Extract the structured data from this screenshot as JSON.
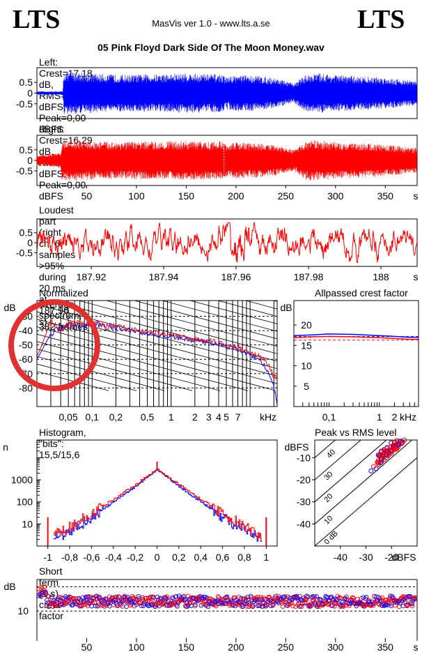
{
  "header": {
    "logo_left": "LTS",
    "logo_right": "LTS",
    "app_title": "MasVis ver 1.0 - www.lts.a.se",
    "file_name": "05 Pink Floyd Dark Side Of The Moon Money.wav"
  },
  "colors": {
    "left": "#0000ff",
    "right": "#ff0000",
    "annotation": "#e03030"
  },
  "chart_data": [
    {
      "id": "left-waveform",
      "type": "area",
      "title": "Left: Crest=17,18 dB, RMS=-17,18 dBFS, Peak=0,00 dBFS",
      "y_ticks": [
        "0.5",
        "0",
        "-0.5"
      ],
      "ylim": [
        -1,
        1
      ],
      "xlim": [
        0,
        382
      ],
      "envelope_x": [
        0,
        26,
        27,
        40,
        60,
        90,
        120,
        150,
        170,
        185,
        190,
        200,
        220,
        240,
        258,
        268,
        275,
        285,
        300,
        320,
        340,
        355,
        365,
        375,
        382
      ],
      "envelope_amp": [
        0.08,
        0.08,
        1.0,
        0.98,
        0.9,
        0.85,
        0.88,
        0.92,
        0.9,
        0.88,
        0.75,
        0.85,
        0.82,
        0.7,
        0.45,
        0.8,
        0.9,
        0.92,
        0.85,
        0.8,
        0.75,
        0.7,
        0.65,
        0.6,
        0.55
      ],
      "color": "#0000ff"
    },
    {
      "id": "right-waveform",
      "type": "area",
      "title": "Right: Crest=16,29 dB, RMS=-16,29 dBFS, Peak=0,00 dBFS",
      "y_ticks": [
        "0.5",
        "0",
        "-0.5"
      ],
      "x_ticks": [
        "50",
        "100",
        "150",
        "200",
        "250",
        "300",
        "350",
        "s"
      ],
      "x_tick_values": [
        50,
        100,
        150,
        200,
        250,
        300,
        350
      ],
      "ylim": [
        -1,
        1
      ],
      "xlim": [
        0,
        382
      ],
      "marker_x": 187.96,
      "envelope_x": [
        0,
        24,
        25,
        40,
        60,
        90,
        120,
        150,
        170,
        185,
        190,
        200,
        220,
        240,
        258,
        268,
        275,
        285,
        300,
        320,
        340,
        355,
        365,
        375,
        382
      ],
      "envelope_amp": [
        0.25,
        0.35,
        0.95,
        0.95,
        0.9,
        0.88,
        0.9,
        0.92,
        0.9,
        0.9,
        0.8,
        0.86,
        0.82,
        0.72,
        0.5,
        0.85,
        0.95,
        0.95,
        0.88,
        0.82,
        0.78,
        0.72,
        0.68,
        0.62,
        0.6
      ],
      "color": "#ff0000"
    },
    {
      "id": "loudest-part",
      "type": "line",
      "title": "Loudest part (right ch, 6 samples >95% during 20 ms at 187,96 s)",
      "y_ticks": [
        "0.5",
        "0",
        "-0.5"
      ],
      "x_ticks": [
        "187.92",
        "187.94",
        "187.96",
        "187.98",
        "188",
        "s"
      ],
      "x_tick_values": [
        187.92,
        187.94,
        187.96,
        187.98,
        188.0
      ],
      "xlim": [
        187.905,
        188.01
      ],
      "ylim": [
        -1,
        1
      ],
      "color": "#ff0000"
    },
    {
      "id": "spectrum",
      "type": "line",
      "title": "Normalized average spectrum, 382 frames",
      "ylabel": "dB",
      "y_ticks": [
        "-30",
        "-40",
        "-50",
        "-60",
        "-70",
        "-80"
      ],
      "y_tick_values": [
        -30,
        -40,
        -50,
        -60,
        -70,
        -80
      ],
      "x_ticks": [
        "0,05",
        "0,1",
        "0,2",
        "0,5",
        "1",
        "2",
        "3",
        "4",
        "5",
        "7",
        "kHz"
      ],
      "x_tick_values": [
        0.05,
        0.1,
        0.2,
        0.5,
        1,
        2,
        3,
        4,
        5,
        7
      ],
      "xlim_khz": [
        0.02,
        22
      ],
      "ylim": [
        -93,
        -19
      ],
      "series": [
        {
          "color": "#0000ff",
          "x_khz": [
            0.02,
            0.025,
            0.03,
            0.04,
            0.05,
            0.07,
            0.1,
            0.15,
            0.2,
            0.3,
            0.5,
            0.7,
            1,
            1.5,
            2,
            3,
            5,
            7,
            10,
            13,
            16,
            20,
            22
          ],
          "db": [
            -60,
            -50,
            -42,
            -38,
            -37,
            -36,
            -36,
            -37,
            -38,
            -40,
            -42,
            -43,
            -44,
            -46,
            -47,
            -48,
            -51,
            -53,
            -57,
            -60,
            -66,
            -80,
            -91
          ]
        },
        {
          "color": "#ff0000",
          "x_khz": [
            0.02,
            0.025,
            0.03,
            0.04,
            0.05,
            0.07,
            0.1,
            0.15,
            0.2,
            0.3,
            0.5,
            0.7,
            1,
            1.5,
            2,
            3,
            5,
            7,
            10,
            13,
            16,
            20,
            22
          ],
          "db": [
            -58,
            -45,
            -32,
            -39,
            -36,
            -35,
            -35,
            -37,
            -37,
            -39,
            -41,
            -42,
            -43,
            -45,
            -46,
            -47,
            -50,
            -52,
            -55,
            -58,
            -62,
            -72,
            -75
          ]
        }
      ]
    },
    {
      "id": "allpassed-crest",
      "type": "line",
      "title": "Allpassed crest factor",
      "ylabel": "dB",
      "y_ticks": [
        "20",
        "15",
        "10",
        "5"
      ],
      "y_tick_values": [
        20,
        15,
        10,
        5
      ],
      "x_ticks": [
        "0,1",
        "1",
        "2",
        "kHz"
      ],
      "x_tick_values": [
        0.1,
        1,
        2
      ],
      "xlim_khz": [
        0.02,
        6
      ],
      "ylim": [
        0,
        26
      ],
      "series": [
        {
          "color": "#0000ff",
          "x_khz": [
            0.02,
            0.05,
            0.1,
            0.3,
            1,
            2,
            4,
            6
          ],
          "db": [
            17.4,
            17.6,
            17.8,
            17.7,
            17.4,
            17.2,
            17.0,
            17.0
          ]
        },
        {
          "color": "#ff0000",
          "x_khz": [
            0.02,
            0.05,
            0.1,
            0.3,
            1,
            2,
            4,
            6
          ],
          "db": [
            16.9,
            17.1,
            17.2,
            17.1,
            16.9,
            16.7,
            16.5,
            16.5
          ]
        }
      ],
      "ref_lines_db": [
        17.18,
        16.29
      ]
    },
    {
      "id": "histogram",
      "type": "line",
      "title": "Histogram, \"bits\": 15,5/15,6",
      "ylabel": "n",
      "y_ticks": [
        "1000",
        "100",
        "10"
      ],
      "y_tick_values": [
        1000,
        100,
        10
      ],
      "x_ticks": [
        "-1",
        "-0,8",
        "-0,6",
        "-0,4",
        "-0,2",
        "0",
        "0,2",
        "0,4",
        "0,6",
        "0,8",
        "1"
      ],
      "x_tick_values": [
        -1,
        -0.8,
        -0.6,
        -0.4,
        -0.2,
        0,
        0.2,
        0.4,
        0.6,
        0.8,
        1
      ],
      "xlim": [
        -1.1,
        1.1
      ],
      "ylim_log10": [
        0,
        4.8
      ],
      "peak_count": 3000,
      "series": [
        {
          "color": "#0000ff",
          "x": [
            -0.95,
            -0.8,
            -0.6,
            -0.4,
            -0.2,
            0,
            0.2,
            0.4,
            0.6,
            0.8,
            0.95
          ],
          "count": [
            2,
            5,
            20,
            100,
            500,
            3000,
            500,
            100,
            20,
            5,
            2
          ]
        },
        {
          "color": "#ff0000",
          "x": [
            -0.95,
            -0.8,
            -0.6,
            -0.4,
            -0.2,
            0,
            0.2,
            0.4,
            0.6,
            0.8,
            0.95
          ],
          "count": [
            3,
            7,
            30,
            130,
            600,
            3000,
            600,
            130,
            30,
            7,
            3
          ]
        }
      ],
      "clip_spike_count": 20
    },
    {
      "id": "peak-vs-rms",
      "type": "scatter",
      "title": "Peak vs RMS level",
      "ylabel": "dBFS",
      "xlabel": "dBFS",
      "y_ticks": [
        "-10",
        "-20",
        "-30",
        "-40"
      ],
      "y_tick_values": [
        -10,
        -20,
        -30,
        -40
      ],
      "x_ticks": [
        "-40",
        "-30",
        "-20"
      ],
      "x_tick_values": [
        -40,
        -30,
        -20
      ],
      "xlim": [
        -50,
        -10
      ],
      "ylim": [
        -50,
        -2
      ],
      "diagonal_labels": [
        "40",
        "30",
        "20",
        "10",
        "0 dB"
      ],
      "series": [
        {
          "color": "#0000ff",
          "rms": [
            -28,
            -26,
            -25,
            -24,
            -22,
            -21,
            -20,
            -19,
            -18,
            -17,
            -16
          ],
          "peak": [
            -16,
            -15,
            -13,
            -11,
            -10,
            -8,
            -7,
            -6,
            -5,
            -4,
            -3
          ]
        },
        {
          "color": "#ff0000",
          "rms": [
            -27,
            -25,
            -24,
            -23,
            -22,
            -21,
            -20,
            -19,
            -18,
            -17,
            -16,
            -15,
            -22,
            -20,
            -18
          ],
          "peak": [
            -14,
            -13,
            -12,
            -11,
            -9,
            -8,
            -7,
            -6,
            -5,
            -4,
            -3,
            -2,
            -10,
            -8,
            -6
          ]
        }
      ]
    },
    {
      "id": "short-term-crest",
      "type": "scatter",
      "title": "Short term (1 s) crest factor",
      "ylabel": "dB",
      "y_ticks": [
        "10"
      ],
      "y_tick_values": [
        10
      ],
      "x_ticks": [
        "50",
        "100",
        "150",
        "200",
        "250",
        "300",
        "350",
        "s"
      ],
      "x_tick_values": [
        50,
        100,
        150,
        200,
        250,
        300,
        350
      ],
      "xlim": [
        0,
        382
      ],
      "ylim": [
        0,
        23
      ],
      "ref_lines_db": [
        10,
        20
      ],
      "mean_db": 14
    }
  ],
  "annotation": {
    "shape": "circle",
    "target": "spectrum low-frequency region"
  }
}
